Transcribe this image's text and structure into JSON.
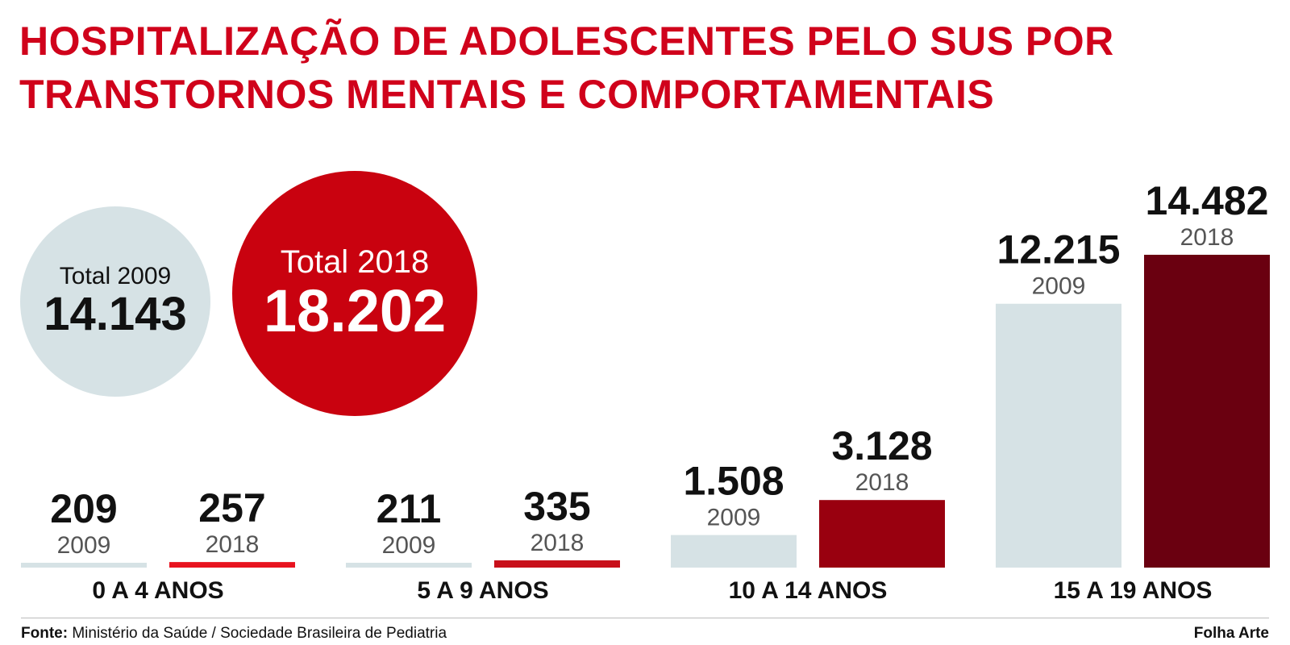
{
  "title_line1": "HOSPITALIZAÇÃO DE ADOLESCENTES PELO SUS POR",
  "title_line2": "TRANSTORNOS MENTAIS E COMPORTAMENTAIS",
  "totals": {
    "y2009": {
      "label": "Total 2009",
      "value": "14.143",
      "color": "#d6e2e5"
    },
    "y2018": {
      "label": "Total 2018",
      "value": "18.202",
      "color": "#c9020f"
    }
  },
  "chart_data": {
    "type": "bar",
    "categories": [
      "0 A 4 ANOS",
      "5 A 9 ANOS",
      "10 A 14 ANOS",
      "15 A 19 ANOS"
    ],
    "series": [
      {
        "name": "2009",
        "values": [
          209,
          211,
          1508,
          12215
        ],
        "labels": [
          "209",
          "211",
          "1.508",
          "12.215"
        ],
        "colors": [
          "#d6e2e5",
          "#d6e2e5",
          "#d6e2e5",
          "#d6e2e5"
        ]
      },
      {
        "name": "2018",
        "values": [
          257,
          335,
          3128,
          14482
        ],
        "labels": [
          "257",
          "335",
          "3.128",
          "14.482"
        ],
        "colors": [
          "#e8131f",
          "#c8101a",
          "#99000f",
          "#6a0010"
        ]
      }
    ]
  },
  "footer": {
    "source_label": "Fonte:",
    "source_text": " Ministério da Saúde / Sociedade Brasileira de Pediatria",
    "credit": "Folha Arte"
  }
}
